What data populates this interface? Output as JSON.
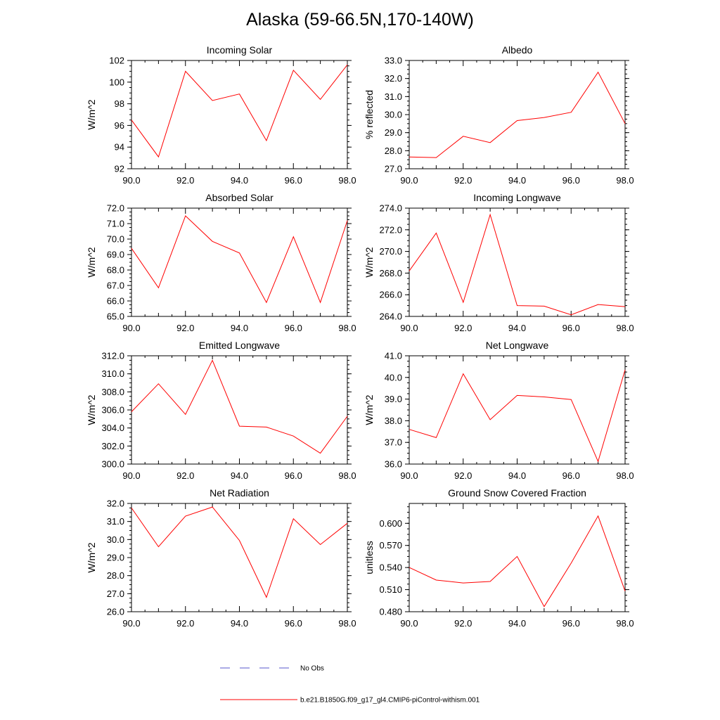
{
  "page": {
    "title": "Alaska (59-66.5N,170-140W)"
  },
  "legend": {
    "entries": [
      {
        "label": "No Obs",
        "color": "#5555cc",
        "dash": "dashed"
      },
      {
        "label": "b.e21.B1850G.f09_g17_gl4.CMIP6-piControl-withism.001",
        "color": "#ff0000",
        "dash": "solid"
      }
    ]
  },
  "chart_data": [
    {
      "type": "line",
      "title": "Incoming Solar",
      "ylabel": "W/m^2",
      "xlim": [
        90,
        98
      ],
      "ylim": [
        92,
        102
      ],
      "xticks": [
        "90.0",
        "92.0",
        "94.0",
        "96.0",
        "98.0"
      ],
      "yticks": [
        "92",
        "94",
        "96",
        "98",
        "100",
        "102"
      ],
      "series": [
        {
          "color": "#ff0000",
          "x": [
            90,
            91,
            92,
            93,
            94,
            95,
            96,
            97,
            98
          ],
          "y": [
            96.5,
            93.1,
            101.0,
            98.3,
            98.9,
            94.6,
            101.1,
            98.4,
            101.6
          ]
        }
      ]
    },
    {
      "type": "line",
      "title": "Albedo",
      "ylabel": "% reflected",
      "xlim": [
        90,
        98
      ],
      "ylim": [
        27.0,
        33.0
      ],
      "xticks": [
        "90.0",
        "92.0",
        "94.0",
        "96.0",
        "98.0"
      ],
      "yticks": [
        "27.0",
        "28.0",
        "29.0",
        "30.0",
        "31.0",
        "32.0",
        "33.0"
      ],
      "series": [
        {
          "color": "#ff0000",
          "x": [
            90,
            91,
            92,
            93,
            94,
            95,
            96,
            97,
            98
          ],
          "y": [
            27.65,
            27.62,
            28.8,
            28.45,
            29.67,
            29.84,
            30.13,
            32.35,
            29.5
          ]
        }
      ]
    },
    {
      "type": "line",
      "title": "Absorbed Solar",
      "ylabel": "W/m^2",
      "xlim": [
        90,
        98
      ],
      "ylim": [
        65.0,
        72.0
      ],
      "xticks": [
        "90.0",
        "92.0",
        "94.0",
        "96.0",
        "98.0"
      ],
      "yticks": [
        "65.0",
        "66.0",
        "67.0",
        "68.0",
        "69.0",
        "70.0",
        "71.0",
        "72.0"
      ],
      "series": [
        {
          "color": "#ff0000",
          "x": [
            90,
            91,
            92,
            93,
            94,
            95,
            96,
            97,
            98
          ],
          "y": [
            69.4,
            66.85,
            71.5,
            69.85,
            69.1,
            65.9,
            70.15,
            65.9,
            71.2
          ]
        }
      ]
    },
    {
      "type": "line",
      "title": "Incoming Longwave",
      "ylabel": "W/m^2",
      "xlim": [
        90,
        98
      ],
      "ylim": [
        264.0,
        274.0
      ],
      "xticks": [
        "90.0",
        "92.0",
        "94.0",
        "96.0",
        "98.0"
      ],
      "yticks": [
        "264.0",
        "266.0",
        "268.0",
        "270.0",
        "272.0",
        "274.0"
      ],
      "series": [
        {
          "color": "#ff0000",
          "x": [
            90,
            91,
            92,
            93,
            94,
            95,
            96,
            97,
            98
          ],
          "y": [
            268.2,
            271.7,
            265.3,
            273.4,
            265.0,
            264.95,
            264.15,
            265.1,
            264.9
          ]
        }
      ]
    },
    {
      "type": "line",
      "title": "Emitted Longwave",
      "ylabel": "W/m^2",
      "xlim": [
        90,
        98
      ],
      "ylim": [
        300.0,
        312.0
      ],
      "xticks": [
        "90.0",
        "92.0",
        "94.0",
        "96.0",
        "98.0"
      ],
      "yticks": [
        "300.0",
        "302.0",
        "304.0",
        "306.0",
        "308.0",
        "310.0",
        "312.0"
      ],
      "series": [
        {
          "color": "#ff0000",
          "x": [
            90,
            91,
            92,
            93,
            94,
            95,
            96,
            97,
            98
          ],
          "y": [
            305.8,
            308.9,
            305.5,
            311.5,
            304.2,
            304.1,
            303.1,
            301.2,
            305.3
          ]
        }
      ]
    },
    {
      "type": "line",
      "title": "Net Longwave",
      "ylabel": "W/m^2",
      "xlim": [
        90,
        98
      ],
      "ylim": [
        36.0,
        41.0
      ],
      "xticks": [
        "90.0",
        "92.0",
        "94.0",
        "96.0",
        "98.0"
      ],
      "yticks": [
        "36.0",
        "37.0",
        "38.0",
        "39.0",
        "40.0",
        "41.0"
      ],
      "series": [
        {
          "color": "#ff0000",
          "x": [
            90,
            91,
            92,
            93,
            94,
            95,
            96,
            97,
            98
          ],
          "y": [
            37.6,
            37.22,
            40.17,
            38.05,
            39.17,
            39.1,
            38.98,
            36.12,
            40.35
          ]
        }
      ]
    },
    {
      "type": "line",
      "title": "Net Radiation",
      "ylabel": "W/m^2",
      "xlim": [
        90,
        98
      ],
      "ylim": [
        26.0,
        32.0
      ],
      "xticks": [
        "90.0",
        "92.0",
        "94.0",
        "96.0",
        "98.0"
      ],
      "yticks": [
        "26.0",
        "27.0",
        "28.0",
        "29.0",
        "30.0",
        "31.0",
        "32.0"
      ],
      "series": [
        {
          "color": "#ff0000",
          "x": [
            90,
            91,
            92,
            93,
            94,
            95,
            96,
            97,
            98
          ],
          "y": [
            31.75,
            29.6,
            31.3,
            31.8,
            29.95,
            26.8,
            31.15,
            29.72,
            30.9
          ]
        }
      ]
    },
    {
      "type": "line",
      "title": "Ground Snow Covered Fraction",
      "ylabel": "unitless",
      "xlim": [
        90,
        98
      ],
      "ylim": [
        0.48,
        0.627
      ],
      "xticks": [
        "90.0",
        "92.0",
        "94.0",
        "96.0",
        "98.0"
      ],
      "yticks": [
        "0.480",
        "0.510",
        "0.540",
        "0.570",
        "0.600"
      ],
      "series": [
        {
          "color": "#ff0000",
          "x": [
            90,
            91,
            92,
            93,
            94,
            95,
            96,
            97,
            98
          ],
          "y": [
            0.54,
            0.523,
            0.519,
            0.521,
            0.555,
            0.487,
            0.546,
            0.61,
            0.508
          ]
        }
      ]
    }
  ]
}
